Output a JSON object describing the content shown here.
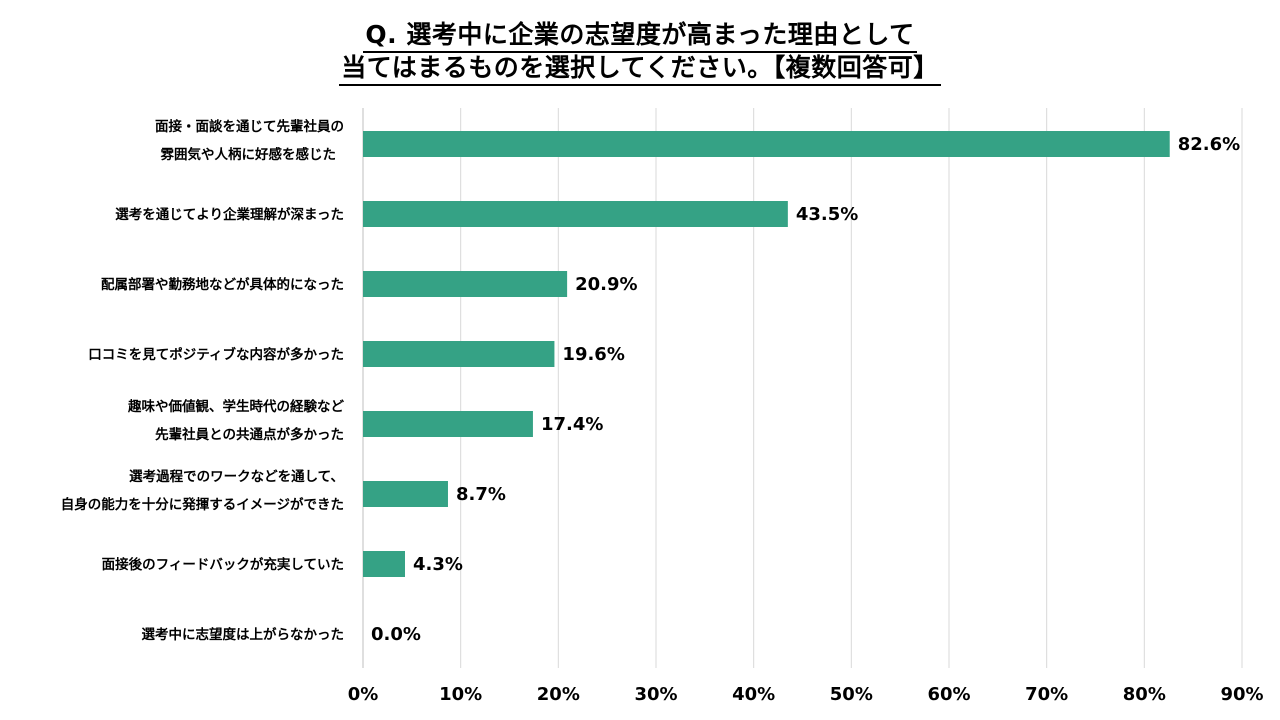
{
  "chart_data": {
    "type": "bar",
    "orientation": "horizontal",
    "title_lines": [
      "Q. 選考中に企業の志望度が高まった理由として",
      "当てはまるものを選択してください。【複数回答可】"
    ],
    "categories": [
      [
        "面接・面談を通じて先輩社員の",
        "雰囲気や人柄に好感を感じた"
      ],
      [
        "選考を通じてより企業理解が深まった"
      ],
      [
        "配属部署や勤務地などが具体的になった"
      ],
      [
        "口コミを見てポジティブな内容が多かった"
      ],
      [
        "趣味や価値観、学生時代の経験など",
        "先輩社員との共通点が多かった"
      ],
      [
        "選考過程でのワークなどを通して、",
        "自身の能力を十分に発揮するイメージができた"
      ],
      [
        "面接後のフィードバックが充実していた"
      ],
      [
        "選考中に志望度は上がらなかった"
      ]
    ],
    "values": [
      82.6,
      43.5,
      20.9,
      19.6,
      17.4,
      8.7,
      4.3,
      0.0
    ],
    "value_labels": [
      "82.6%",
      "43.5%",
      "20.9%",
      "19.6%",
      "17.4%",
      "8.7%",
      "4.3%",
      "0.0%"
    ],
    "xlim": [
      0,
      90
    ],
    "x_ticks": [
      0,
      10,
      20,
      30,
      40,
      50,
      60,
      70,
      80,
      90
    ],
    "x_tick_labels": [
      "0%",
      "10%",
      "20%",
      "30%",
      "40%",
      "50%",
      "60%",
      "70%",
      "80%",
      "90%"
    ],
    "grid": true,
    "legend": "none",
    "bar_color": "#35A285",
    "grid_color": "#d9d9d9",
    "axis_color": "#bfbfbf"
  }
}
